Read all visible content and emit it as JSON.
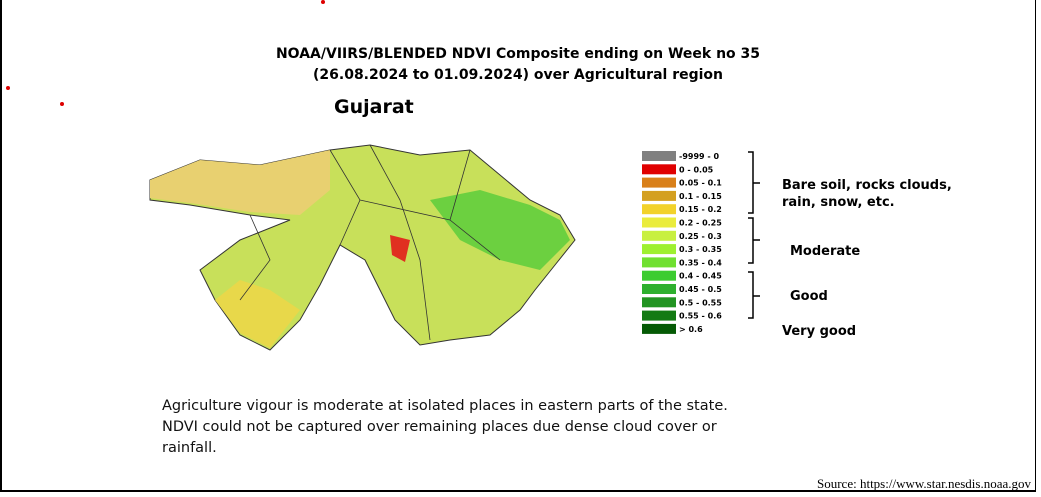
{
  "title_lines": [
    "NOAA/VIIRS/BLENDED NDVI Composite ending on Week no 35",
    "(26.08.2024 to 01.09.2024) over Agricultural region"
  ],
  "region": "Gujarat",
  "legend": [
    {
      "label": "-9999 - 0",
      "color": "#808080"
    },
    {
      "label": "0 - 0.05",
      "color": "#e00000"
    },
    {
      "label": "0.05 - 0.1",
      "color": "#d9801a"
    },
    {
      "label": "0.1 - 0.15",
      "color": "#d4a020"
    },
    {
      "label": "0.15 - 0.2",
      "color": "#f2d22a"
    },
    {
      "label": "0.2 - 0.25",
      "color": "#eaec3c"
    },
    {
      "label": "0.25 - 0.3",
      "color": "#c8f040"
    },
    {
      "label": "0.3 - 0.35",
      "color": "#9ef030"
    },
    {
      "label": "0.35 - 0.4",
      "color": "#70e030"
    },
    {
      "label": "0.4 - 0.45",
      "color": "#3ccc30"
    },
    {
      "label": "0.45 - 0.5",
      "color": "#2eb02e"
    },
    {
      "label": "0.5 - 0.55",
      "color": "#229422"
    },
    {
      "label": "0.55 - 0.6",
      "color": "#137a13"
    },
    {
      "label": "> 0.6",
      "color": "#055a05"
    }
  ],
  "groups": [
    {
      "lines": [
        "Bare soil, rocks clouds,",
        "rain, snow, etc."
      ]
    },
    {
      "lines": [
        "Moderate"
      ]
    },
    {
      "lines": [
        "Good"
      ]
    },
    {
      "lines": [
        "Very good"
      ]
    }
  ],
  "description": [
    "Agriculture vigour is moderate at isolated places in eastern parts of the state.",
    "NDVI could not be captured over remaining places due dense cloud cover or",
    "rainfall."
  ],
  "source": "Source: https://www.star.nesdis.noaa.gov"
}
